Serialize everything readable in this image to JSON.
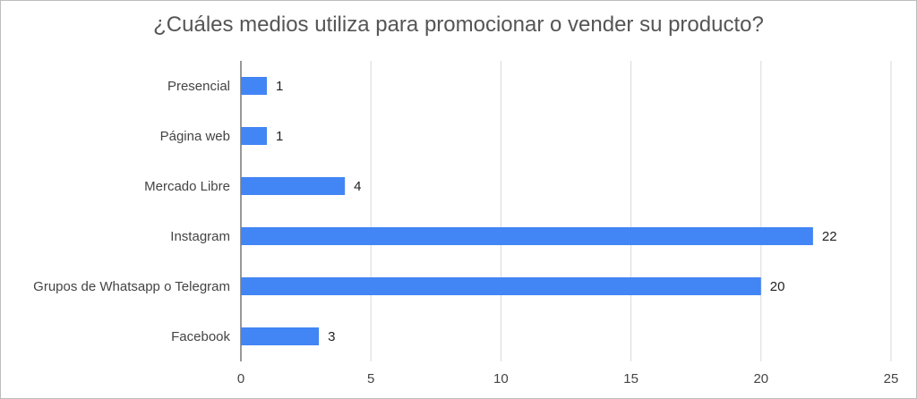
{
  "chart_data": {
    "type": "bar",
    "orientation": "horizontal",
    "title": "¿Cuáles medios utiliza para promocionar o vender su producto?",
    "categories": [
      "Presencial",
      "Página web",
      "Mercado Libre",
      "Instagram",
      "Grupos de Whatsapp o Telegram",
      "Facebook"
    ],
    "values": [
      1,
      1,
      4,
      22,
      20,
      3
    ],
    "xlim": [
      0,
      25
    ],
    "xticks": [
      0,
      5,
      10,
      15,
      20,
      25
    ],
    "grid": true,
    "legend": "none",
    "bar_color": "#4285f4",
    "data_labels": true
  }
}
